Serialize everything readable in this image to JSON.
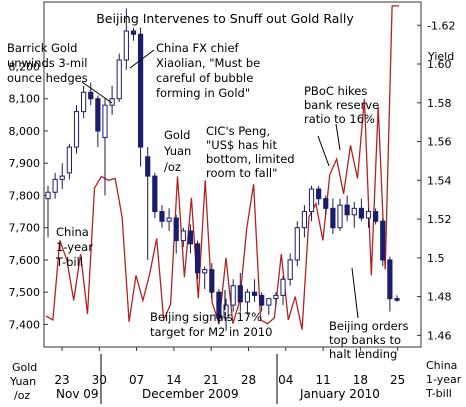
{
  "chart_data": {
    "type": "candlestick",
    "title": "Beijing Intervenes to Snuff out Gold Rally",
    "left_axis": {
      "label_lines": [
        "Gold",
        "Yuan",
        "/oz"
      ],
      "ticks": [
        "7,400",
        "7,500",
        "7,600",
        "7,700",
        "7,800",
        "7,900",
        "8,000",
        "8,100",
        "8,200"
      ],
      "range": [
        7330,
        8400
      ]
    },
    "right_axis": {
      "top_label": "Yield",
      "label_lines": [
        "China",
        "1-year",
        "T-bill"
      ],
      "ticks": [
        "1.46",
        "1.48",
        "1.5",
        "1.52",
        "1.54",
        "1.56",
        "1.58",
        "1.60",
        "-1.62"
      ],
      "range": [
        1.454,
        1.632
      ]
    },
    "x_ticks": [
      "23",
      "30",
      "07",
      "14",
      "21",
      "28",
      "04",
      "11",
      "18",
      "25"
    ],
    "x_groups": [
      "Nov 09",
      "December 2009",
      "January 2010"
    ],
    "series_labels": {
      "gold": [
        "Gold",
        "Yuan",
        "/oz"
      ],
      "tbill": [
        "China",
        "1-year",
        "T-bill"
      ]
    },
    "annotations": [
      {
        "lines": [
          "Barrick Gold",
          "unwinds 3-mil",
          "ounce hedges"
        ]
      },
      {
        "lines": [
          "China FX chief",
          "Xiaolian, \"Must be",
          "careful of bubble",
          "forming in Gold\""
        ]
      },
      {
        "lines": [
          "PBoC hikes",
          "bank reserve",
          "ratio to 16%"
        ]
      },
      {
        "lines": [
          "CIC's Peng,",
          "\"US$ has hit",
          "bottom, limited",
          "room to fall\""
        ]
      },
      {
        "lines": [
          "Beijing signals 17%",
          "target for M2 in 2010"
        ]
      },
      {
        "lines": [
          "Beijing orders",
          "top banks to",
          "halt lending"
        ]
      }
    ],
    "candles": [
      {
        "o": 7790,
        "h": 7830,
        "l": 7670,
        "c": 7810
      },
      {
        "o": 7810,
        "h": 7870,
        "l": 7790,
        "c": 7850
      },
      {
        "o": 7850,
        "h": 7900,
        "l": 7820,
        "c": 7860
      },
      {
        "o": 7870,
        "h": 7960,
        "l": 7850,
        "c": 7950
      },
      {
        "o": 7950,
        "h": 8080,
        "l": 7930,
        "c": 8060
      },
      {
        "o": 8060,
        "h": 8140,
        "l": 8040,
        "c": 8120
      },
      {
        "o": 8120,
        "h": 8150,
        "l": 8080,
        "c": 8100
      },
      {
        "o": 8100,
        "h": 8110,
        "l": 7950,
        "c": 8000
      },
      {
        "o": 7980,
        "h": 8100,
        "l": 7800,
        "c": 8080
      },
      {
        "o": 8080,
        "h": 8140,
        "l": 8050,
        "c": 8100
      },
      {
        "o": 8100,
        "h": 8240,
        "l": 8090,
        "c": 8220
      },
      {
        "o": 8220,
        "h": 8380,
        "l": 8190,
        "c": 8310
      },
      {
        "o": 8310,
        "h": 8320,
        "l": 8280,
        "c": 8300
      },
      {
        "o": 8300,
        "h": 8320,
        "l": 7890,
        "c": 7950
      },
      {
        "o": 7920,
        "h": 7950,
        "l": 7600,
        "c": 7860
      },
      {
        "o": 7860,
        "h": 7870,
        "l": 7730,
        "c": 7750
      },
      {
        "o": 7750,
        "h": 7770,
        "l": 7700,
        "c": 7720
      },
      {
        "o": 7720,
        "h": 7760,
        "l": 7690,
        "c": 7730
      },
      {
        "o": 7730,
        "h": 7740,
        "l": 7620,
        "c": 7660
      },
      {
        "o": 7660,
        "h": 7700,
        "l": 7640,
        "c": 7690
      },
      {
        "o": 7690,
        "h": 7710,
        "l": 7620,
        "c": 7650
      },
      {
        "o": 7650,
        "h": 7660,
        "l": 7540,
        "c": 7560
      },
      {
        "o": 7560,
        "h": 7580,
        "l": 7510,
        "c": 7570
      },
      {
        "o": 7570,
        "h": 7590,
        "l": 7480,
        "c": 7500
      },
      {
        "o": 7500,
        "h": 7510,
        "l": 7400,
        "c": 7420
      },
      {
        "o": 7420,
        "h": 7480,
        "l": 7380,
        "c": 7460
      },
      {
        "o": 7460,
        "h": 7540,
        "l": 7440,
        "c": 7520
      },
      {
        "o": 7520,
        "h": 7560,
        "l": 7440,
        "c": 7470
      },
      {
        "o": 7470,
        "h": 7510,
        "l": 7430,
        "c": 7500
      },
      {
        "o": 7500,
        "h": 7540,
        "l": 7470,
        "c": 7490
      },
      {
        "o": 7490,
        "h": 7500,
        "l": 7440,
        "c": 7460
      },
      {
        "o": 7460,
        "h": 7470,
        "l": 7430,
        "c": 7480
      },
      {
        "o": 7480,
        "h": 7500,
        "l": 7460,
        "c": 7490
      },
      {
        "o": 7490,
        "h": 7550,
        "l": 7460,
        "c": 7540
      },
      {
        "o": 7540,
        "h": 7620,
        "l": 7520,
        "c": 7600
      },
      {
        "o": 7600,
        "h": 7720,
        "l": 7580,
        "c": 7700
      },
      {
        "o": 7700,
        "h": 7770,
        "l": 7670,
        "c": 7750
      },
      {
        "o": 7750,
        "h": 7830,
        "l": 7720,
        "c": 7820
      },
      {
        "o": 7820,
        "h": 7830,
        "l": 7770,
        "c": 7790
      },
      {
        "o": 7790,
        "h": 7800,
        "l": 7740,
        "c": 7760
      },
      {
        "o": 7760,
        "h": 7790,
        "l": 7680,
        "c": 7700
      },
      {
        "o": 7700,
        "h": 7790,
        "l": 7690,
        "c": 7770
      },
      {
        "o": 7770,
        "h": 7800,
        "l": 7720,
        "c": 7740
      },
      {
        "o": 7740,
        "h": 7780,
        "l": 7700,
        "c": 7760
      },
      {
        "o": 7760,
        "h": 7790,
        "l": 7720,
        "c": 7730
      },
      {
        "o": 7730,
        "h": 7760,
        "l": 7700,
        "c": 7750
      },
      {
        "o": 7750,
        "h": 7760,
        "l": 7710,
        "c": 7720
      },
      {
        "o": 7720,
        "h": 7730,
        "l": 7580,
        "c": 7600
      },
      {
        "o": 7600,
        "h": 7610,
        "l": 7440,
        "c": 7480
      },
      {
        "o": 7480,
        "h": 7490,
        "l": 7470,
        "c": 7475
      }
    ],
    "tbill_yield": [
      1.47,
      1.468,
      1.509,
      1.499,
      1.478,
      1.502,
      1.471,
      1.536,
      1.542,
      1.54,
      1.541,
      1.521,
      1.467,
      1.491,
      1.478,
      1.492,
      1.51,
      1.468,
      1.476,
      1.542,
      1.49,
      1.531,
      1.479,
      1.54,
      1.477,
      1.466,
      1.5,
      1.466,
      1.478,
      1.515,
      1.538,
      1.468,
      1.466,
      1.469,
      1.502,
      1.468,
      1.48,
      1.463,
      1.521,
      1.528,
      1.509,
      1.543,
      1.551,
      1.533,
      1.558,
      1.541,
      1.582,
      1.491,
      1.578,
      1.494,
      1.63,
      1.63
    ]
  }
}
